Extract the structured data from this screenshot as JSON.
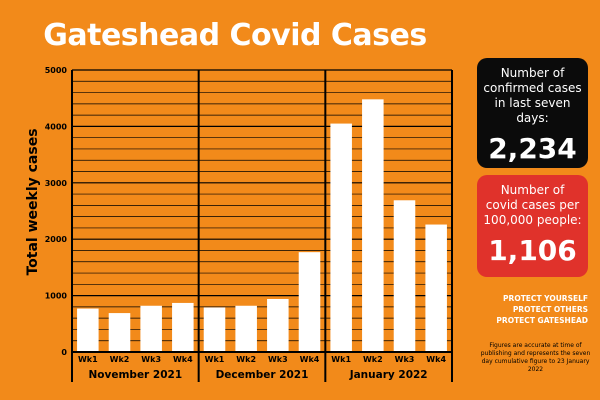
{
  "title": "Gateshead Covid Cases",
  "chart_data": {
    "type": "bar",
    "title": "Gateshead Covid Cases",
    "ylabel": "Total weekly cases",
    "ylim": [
      0,
      5000
    ],
    "yticks": [
      0,
      1000,
      2000,
      3000,
      4000,
      5000
    ],
    "grid": true,
    "groups": [
      {
        "label": "November 2021",
        "categories": [
          "Wk1",
          "Wk2",
          "Wk3",
          "Wk4"
        ],
        "values": [
          770,
          690,
          820,
          870
        ]
      },
      {
        "label": "December 2021",
        "categories": [
          "Wk1",
          "Wk2",
          "Wk3",
          "Wk4"
        ],
        "values": [
          790,
          820,
          940,
          1770
        ]
      },
      {
        "label": "January 2022",
        "categories": [
          "Wk1",
          "Wk2",
          "Wk3",
          "Wk4"
        ],
        "values": [
          4050,
          4480,
          2690,
          2260
        ]
      }
    ],
    "bar_color": "#ffffff"
  },
  "stats": {
    "confirmed_label": "Number of confirmed cases in last seven days:",
    "confirmed_value": "2,234",
    "rate_label": "Number of covid cases per 100,000 people:",
    "rate_value": "1,106"
  },
  "protect_lines": [
    "PROTECT YOURSELF",
    "PROTECT OTHERS",
    "PROTECT GATESHEAD"
  ],
  "footnote": "Figures are accurate at time of publishing and represents the seven day cumulative figure to 23 January 2022",
  "colors": {
    "background": "#f28a1a",
    "black_box": "#0b0b0b",
    "red_box": "#e0322b",
    "bars": "#ffffff"
  }
}
